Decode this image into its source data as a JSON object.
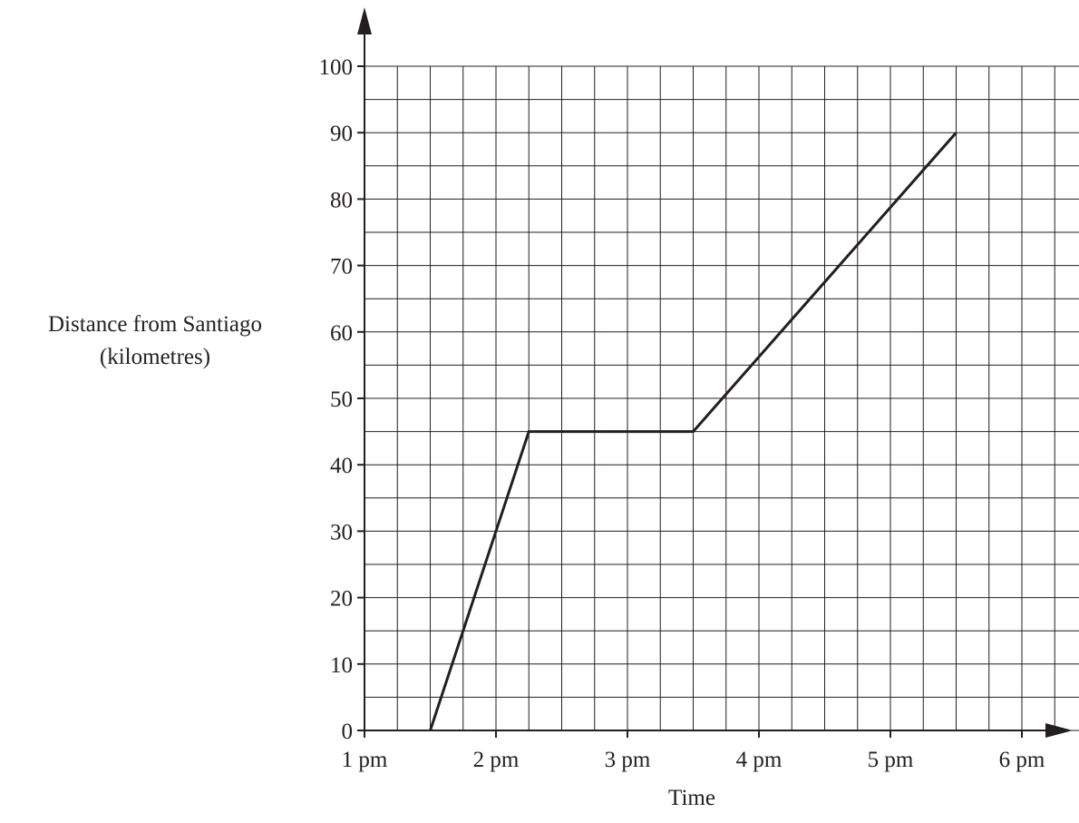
{
  "chart_data": {
    "type": "line",
    "xlabel": "Time",
    "ylabel_lines": [
      "Distance from Santiago",
      "(kilometres)"
    ],
    "xlim": [
      1,
      6.5
    ],
    "ylim": [
      0,
      100
    ],
    "x_ticks": [
      {
        "value": 1,
        "label": "1 pm"
      },
      {
        "value": 2,
        "label": "2 pm"
      },
      {
        "value": 3,
        "label": "3 pm"
      },
      {
        "value": 4,
        "label": "4 pm"
      },
      {
        "value": 5,
        "label": "5 pm"
      },
      {
        "value": 6,
        "label": "6 pm"
      }
    ],
    "y_ticks": [
      0,
      10,
      20,
      30,
      40,
      50,
      60,
      70,
      80,
      90,
      100
    ],
    "x_minor_step": 0.25,
    "y_minor_step": 5,
    "grid": true,
    "series": [
      {
        "points": [
          {
            "x": 1.5,
            "y": 0
          },
          {
            "x": 2.25,
            "y": 45
          },
          {
            "x": 3.5,
            "y": 45
          },
          {
            "x": 5.5,
            "y": 90
          }
        ]
      }
    ]
  }
}
